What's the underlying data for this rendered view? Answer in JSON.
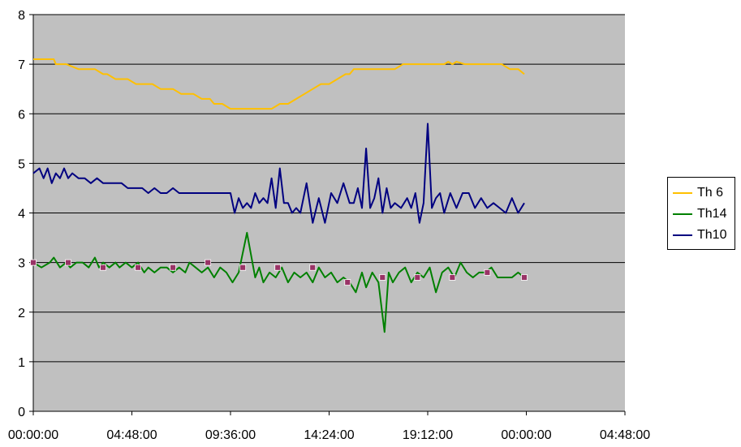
{
  "chart_data": {
    "type": "line",
    "title": "",
    "xlabel": "",
    "ylabel": "",
    "ylim": [
      0,
      8
    ],
    "yticks": [
      "0",
      "1",
      "2",
      "3",
      "4",
      "5",
      "6",
      "7",
      "8"
    ],
    "xlim_hours": [
      0,
      28.8
    ],
    "xticks": [
      "00:00:00",
      "04:48:00",
      "09:36:00",
      "14:24:00",
      "19:12:00",
      "00:00:00",
      "04:48:00"
    ],
    "plot_background": "#c0c0c0",
    "grid": "horizontal",
    "legend_position": "right",
    "series": [
      {
        "name": "Th 6",
        "color": "#ffc000",
        "x": [
          0.0,
          0.5,
          1.0,
          1.1,
          1.6,
          2.2,
          2.4,
          3.0,
          3.4,
          3.6,
          4.0,
          4.2,
          4.6,
          5.0,
          5.4,
          5.8,
          6.2,
          6.4,
          6.8,
          7.2,
          7.6,
          7.8,
          8.2,
          8.6,
          8.8,
          9.2,
          9.6,
          9.8,
          10.2,
          10.6,
          11.2,
          11.6,
          12.0,
          12.4,
          12.8,
          13.2,
          13.6,
          14.0,
          14.4,
          14.8,
          15.2,
          15.4,
          15.6,
          16.0,
          16.4,
          16.8,
          17.2,
          17.6,
          18.0,
          18.4,
          18.8,
          19.2,
          19.6,
          20.0,
          20.2,
          20.4,
          20.6,
          21.0,
          21.4,
          22.0,
          22.4,
          22.8,
          23.2,
          23.6,
          23.9
        ],
        "values": [
          7.1,
          7.1,
          7.1,
          7.0,
          7.0,
          6.9,
          6.9,
          6.9,
          6.8,
          6.8,
          6.7,
          6.7,
          6.7,
          6.6,
          6.6,
          6.6,
          6.5,
          6.5,
          6.5,
          6.4,
          6.4,
          6.4,
          6.3,
          6.3,
          6.2,
          6.2,
          6.1,
          6.1,
          6.1,
          6.1,
          6.1,
          6.1,
          6.2,
          6.2,
          6.3,
          6.4,
          6.5,
          6.6,
          6.6,
          6.7,
          6.8,
          6.8,
          6.9,
          6.9,
          6.9,
          6.9,
          6.9,
          6.9,
          7.0,
          7.0,
          7.0,
          7.0,
          7.0,
          7.0,
          7.05,
          7.0,
          7.05,
          7.0,
          7.0,
          7.0,
          7.0,
          7.0,
          6.9,
          6.9,
          6.8
        ]
      },
      {
        "name": "Th14",
        "color": "#008000",
        "x": [
          0.0,
          0.4,
          0.8,
          1.0,
          1.3,
          1.6,
          1.8,
          2.1,
          2.4,
          2.7,
          3.0,
          3.2,
          3.4,
          3.7,
          4.0,
          4.2,
          4.5,
          4.8,
          5.1,
          5.4,
          5.6,
          5.9,
          6.2,
          6.5,
          6.8,
          7.1,
          7.4,
          7.6,
          7.9,
          8.2,
          8.5,
          8.8,
          9.1,
          9.4,
          9.7,
          10.0,
          10.4,
          10.8,
          11.0,
          11.2,
          11.5,
          11.8,
          12.1,
          12.4,
          12.7,
          13.0,
          13.3,
          13.6,
          13.9,
          14.2,
          14.5,
          14.8,
          15.1,
          15.4,
          15.7,
          16.0,
          16.2,
          16.5,
          16.8,
          17.1,
          17.3,
          17.5,
          17.8,
          18.1,
          18.4,
          18.7,
          19.0,
          19.3,
          19.6,
          19.9,
          20.2,
          20.5,
          20.8,
          21.1,
          21.4,
          21.7,
          22.0,
          22.3,
          22.6,
          23.0,
          23.3,
          23.6,
          23.9
        ],
        "values": [
          3.0,
          2.9,
          3.0,
          3.1,
          2.9,
          3.0,
          2.9,
          3.0,
          3.0,
          2.9,
          3.1,
          2.9,
          3.0,
          2.9,
          3.0,
          2.9,
          3.0,
          2.9,
          3.0,
          2.8,
          2.9,
          2.8,
          2.9,
          2.9,
          2.8,
          2.9,
          2.8,
          3.0,
          2.9,
          2.8,
          2.9,
          2.7,
          2.9,
          2.8,
          2.6,
          2.8,
          3.6,
          2.7,
          2.9,
          2.6,
          2.8,
          2.7,
          2.9,
          2.6,
          2.8,
          2.7,
          2.8,
          2.6,
          2.9,
          2.7,
          2.8,
          2.6,
          2.7,
          2.6,
          2.4,
          2.8,
          2.5,
          2.8,
          2.6,
          1.6,
          2.8,
          2.6,
          2.8,
          2.9,
          2.6,
          2.8,
          2.7,
          2.9,
          2.4,
          2.8,
          2.9,
          2.7,
          3.0,
          2.8,
          2.7,
          2.8,
          2.8,
          2.9,
          2.7,
          2.7,
          2.7,
          2.8,
          2.7
        ]
      },
      {
        "name": "Th10",
        "color": "#000080",
        "x": [
          0.0,
          0.3,
          0.5,
          0.7,
          0.9,
          1.1,
          1.3,
          1.5,
          1.7,
          1.9,
          2.2,
          2.5,
          2.8,
          3.1,
          3.4,
          3.7,
          4.0,
          4.3,
          4.6,
          5.0,
          5.3,
          5.6,
          5.9,
          6.2,
          6.5,
          6.8,
          7.1,
          7.4,
          7.7,
          8.0,
          8.5,
          9.0,
          9.6,
          9.8,
          10.0,
          10.2,
          10.4,
          10.6,
          10.8,
          11.0,
          11.2,
          11.4,
          11.6,
          11.8,
          12.0,
          12.2,
          12.4,
          12.6,
          12.8,
          13.0,
          13.3,
          13.6,
          13.9,
          14.2,
          14.5,
          14.8,
          15.1,
          15.4,
          15.6,
          15.8,
          16.0,
          16.2,
          16.4,
          16.6,
          16.8,
          17.0,
          17.2,
          17.4,
          17.6,
          17.9,
          18.2,
          18.4,
          18.6,
          18.8,
          19.0,
          19.2,
          19.4,
          19.6,
          19.8,
          20.0,
          20.3,
          20.6,
          20.9,
          21.2,
          21.5,
          21.8,
          22.1,
          22.4,
          22.7,
          23.0,
          23.3,
          23.6,
          23.9
        ],
        "values": [
          4.8,
          4.9,
          4.7,
          4.9,
          4.6,
          4.8,
          4.7,
          4.9,
          4.7,
          4.8,
          4.7,
          4.7,
          4.6,
          4.7,
          4.6,
          4.6,
          4.6,
          4.6,
          4.5,
          4.5,
          4.5,
          4.4,
          4.5,
          4.4,
          4.4,
          4.5,
          4.4,
          4.4,
          4.4,
          4.4,
          4.4,
          4.4,
          4.4,
          4.0,
          4.3,
          4.1,
          4.2,
          4.1,
          4.4,
          4.2,
          4.3,
          4.2,
          4.7,
          4.1,
          4.9,
          4.2,
          4.2,
          4.0,
          4.1,
          4.0,
          4.6,
          3.8,
          4.3,
          3.8,
          4.4,
          4.2,
          4.6,
          4.2,
          4.2,
          4.5,
          4.1,
          5.3,
          4.1,
          4.3,
          4.7,
          4.0,
          4.5,
          4.1,
          4.2,
          4.1,
          4.3,
          4.1,
          4.4,
          3.8,
          4.2,
          5.8,
          4.1,
          4.3,
          4.4,
          4.0,
          4.4,
          4.1,
          4.4,
          4.4,
          4.1,
          4.3,
          4.1,
          4.2,
          4.1,
          4.0,
          4.3,
          4.0,
          4.2
        ]
      },
      {
        "name": "",
        "color": "#993366",
        "markers_only": true,
        "x": [
          0.0,
          1.7,
          3.4,
          5.1,
          6.8,
          8.5,
          10.2,
          11.9,
          13.6,
          15.3,
          17.0,
          18.7,
          20.4,
          22.1,
          23.9
        ],
        "values": [
          3.0,
          3.0,
          2.9,
          2.9,
          2.9,
          3.0,
          2.9,
          2.9,
          2.9,
          2.6,
          2.7,
          2.7,
          2.7,
          2.8,
          2.7
        ]
      }
    ]
  }
}
